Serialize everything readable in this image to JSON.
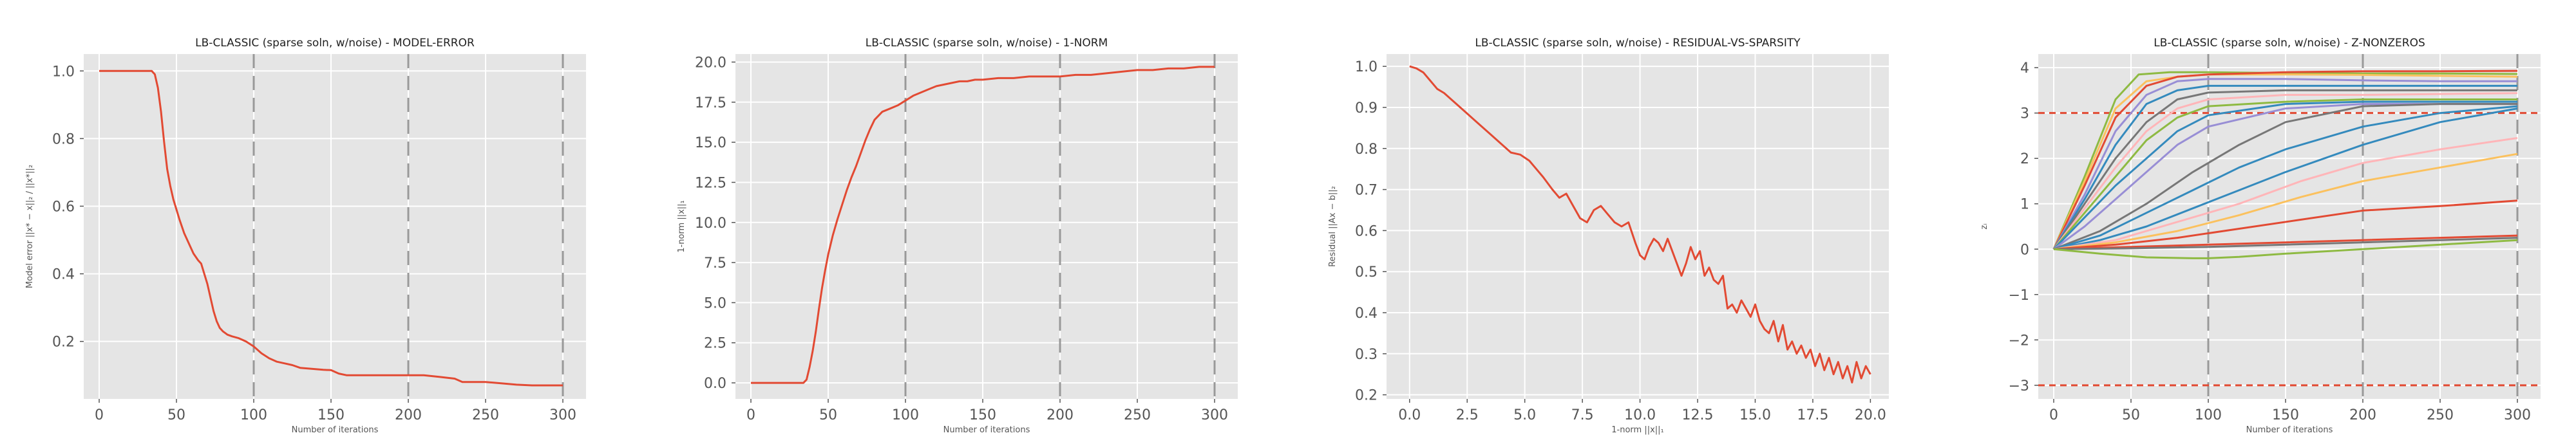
{
  "chart_data": [
    {
      "type": "line",
      "title": "LB-CLASSIC (sparse soln, w/noise) - MODEL-ERROR",
      "xlabel": "Number of iterations",
      "ylabel": "Model error ||x* − x||₂ / ||x*||₂",
      "xlim": [
        -10,
        315
      ],
      "ylim": [
        0.03,
        1.05
      ],
      "xticks": [
        0,
        50,
        100,
        150,
        200,
        250,
        300
      ],
      "yticks": [
        0.2,
        0.4,
        0.6,
        0.8,
        1.0
      ],
      "xtick_labels": [
        "0",
        "50",
        "100",
        "150",
        "200",
        "250",
        "300"
      ],
      "ytick_labels": [
        "0.2",
        "0.4",
        "0.6",
        "0.8",
        "1.0"
      ],
      "grid": true,
      "vlines": [
        100,
        200,
        300
      ],
      "series": [
        {
          "color": "#e24a33",
          "x": [
            0,
            34,
            36,
            38,
            40,
            42,
            44,
            46,
            48,
            50,
            52,
            55,
            58,
            61,
            64,
            66,
            68,
            70,
            72,
            74,
            76,
            78,
            80,
            83,
            86,
            90,
            95,
            100,
            105,
            110,
            115,
            120,
            125,
            130,
            135,
            140,
            145,
            150,
            155,
            160,
            170,
            180,
            190,
            200,
            210,
            220,
            230,
            235,
            240,
            250,
            260,
            270,
            280,
            290,
            300
          ],
          "y": [
            1.0,
            1.0,
            0.99,
            0.95,
            0.88,
            0.79,
            0.71,
            0.66,
            0.62,
            0.59,
            0.56,
            0.52,
            0.49,
            0.46,
            0.44,
            0.43,
            0.4,
            0.37,
            0.33,
            0.29,
            0.26,
            0.24,
            0.23,
            0.22,
            0.215,
            0.21,
            0.2,
            0.185,
            0.165,
            0.15,
            0.14,
            0.135,
            0.13,
            0.122,
            0.12,
            0.118,
            0.116,
            0.115,
            0.105,
            0.1,
            0.1,
            0.1,
            0.1,
            0.1,
            0.1,
            0.095,
            0.09,
            0.08,
            0.08,
            0.08,
            0.076,
            0.072,
            0.07,
            0.07,
            0.07
          ]
        }
      ]
    },
    {
      "type": "line",
      "title": "LB-CLASSIC (sparse soln, w/noise) - 1-NORM",
      "xlabel": "Number of iterations",
      "ylabel": "1-norm ||x||₁",
      "xlim": [
        -10,
        315
      ],
      "ylim": [
        -1,
        20.5
      ],
      "xticks": [
        0,
        50,
        100,
        150,
        200,
        250,
        300
      ],
      "yticks": [
        0.0,
        2.5,
        5.0,
        7.5,
        10.0,
        12.5,
        15.0,
        17.5,
        20.0
      ],
      "xtick_labels": [
        "0",
        "50",
        "100",
        "150",
        "200",
        "250",
        "300"
      ],
      "ytick_labels": [
        "0.0",
        "2.5",
        "5.0",
        "7.5",
        "10.0",
        "12.5",
        "15.0",
        "17.5",
        "20.0"
      ],
      "grid": true,
      "vlines": [
        100,
        200,
        300
      ],
      "series": [
        {
          "color": "#e24a33",
          "x": [
            0,
            34,
            36,
            38,
            40,
            42,
            44,
            46,
            48,
            50,
            53,
            56,
            59,
            62,
            65,
            68,
            71,
            74,
            77,
            80,
            85,
            90,
            95,
            100,
            105,
            110,
            115,
            120,
            125,
            130,
            135,
            140,
            145,
            150,
            160,
            170,
            180,
            190,
            200,
            210,
            220,
            230,
            240,
            250,
            260,
            270,
            280,
            290,
            300
          ],
          "y": [
            0.0,
            0.0,
            0.2,
            1.0,
            2.0,
            3.2,
            4.6,
            5.9,
            7.0,
            8.0,
            9.2,
            10.2,
            11.1,
            12.0,
            12.8,
            13.5,
            14.3,
            15.1,
            15.8,
            16.4,
            16.9,
            17.1,
            17.3,
            17.6,
            17.9,
            18.1,
            18.3,
            18.5,
            18.6,
            18.7,
            18.8,
            18.8,
            18.9,
            18.9,
            19.0,
            19.0,
            19.1,
            19.1,
            19.1,
            19.2,
            19.2,
            19.3,
            19.4,
            19.5,
            19.5,
            19.6,
            19.6,
            19.7,
            19.7
          ]
        }
      ]
    },
    {
      "type": "line",
      "title": "LB-CLASSIC (sparse soln, w/noise) - RESIDUAL-VS-SPARSITY",
      "xlabel": "1-norm ||x||₁",
      "ylabel": "Residual ||Ax − b||₂",
      "xlim": [
        -1,
        20.8
      ],
      "ylim": [
        0.19,
        1.03
      ],
      "xticks": [
        0.0,
        2.5,
        5.0,
        7.5,
        10.0,
        12.5,
        15.0,
        17.5,
        20.0
      ],
      "yticks": [
        0.2,
        0.3,
        0.4,
        0.5,
        0.6,
        0.7,
        0.8,
        0.9,
        1.0
      ],
      "xtick_labels": [
        "0.0",
        "2.5",
        "5.0",
        "7.5",
        "10.0",
        "12.5",
        "15.0",
        "17.5",
        "20.0"
      ],
      "ytick_labels": [
        "0.2",
        "0.3",
        "0.4",
        "0.5",
        "0.6",
        "0.7",
        "0.8",
        "0.9",
        "1.0"
      ],
      "grid": true,
      "vlines": [],
      "series": [
        {
          "color": "#e24a33",
          "x": [
            0.0,
            0.3,
            0.6,
            0.9,
            1.2,
            1.5,
            1.8,
            2.1,
            2.5,
            3.0,
            3.5,
            4.0,
            4.4,
            4.8,
            5.2,
            5.5,
            5.8,
            6.2,
            6.5,
            6.8,
            7.1,
            7.4,
            7.7,
            8.0,
            8.3,
            8.6,
            8.9,
            9.2,
            9.5,
            9.8,
            10.0,
            10.2,
            10.4,
            10.6,
            10.8,
            11.0,
            11.2,
            11.4,
            11.6,
            11.8,
            12.0,
            12.2,
            12.4,
            12.6,
            12.8,
            13.0,
            13.2,
            13.4,
            13.6,
            13.8,
            14.0,
            14.2,
            14.4,
            14.6,
            14.8,
            15.0,
            15.2,
            15.4,
            15.6,
            15.8,
            16.0,
            16.2,
            16.4,
            16.6,
            16.8,
            17.0,
            17.2,
            17.4,
            17.6,
            17.8,
            18.0,
            18.2,
            18.4,
            18.6,
            18.8,
            19.0,
            19.2,
            19.4,
            19.6,
            19.8,
            20.0
          ],
          "y": [
            1.0,
            0.995,
            0.985,
            0.965,
            0.945,
            0.935,
            0.92,
            0.905,
            0.885,
            0.86,
            0.835,
            0.81,
            0.79,
            0.785,
            0.77,
            0.75,
            0.73,
            0.7,
            0.68,
            0.69,
            0.66,
            0.63,
            0.62,
            0.65,
            0.66,
            0.64,
            0.62,
            0.61,
            0.62,
            0.57,
            0.54,
            0.53,
            0.56,
            0.58,
            0.57,
            0.55,
            0.58,
            0.55,
            0.52,
            0.49,
            0.52,
            0.56,
            0.53,
            0.55,
            0.49,
            0.51,
            0.48,
            0.47,
            0.49,
            0.41,
            0.42,
            0.4,
            0.43,
            0.41,
            0.39,
            0.42,
            0.38,
            0.36,
            0.35,
            0.38,
            0.33,
            0.37,
            0.31,
            0.33,
            0.3,
            0.32,
            0.29,
            0.31,
            0.27,
            0.3,
            0.26,
            0.29,
            0.25,
            0.28,
            0.24,
            0.27,
            0.23,
            0.28,
            0.24,
            0.27,
            0.25
          ]
        }
      ]
    },
    {
      "type": "line",
      "title": "LB-CLASSIC (sparse soln, w/noise) - Z-NONZEROS",
      "xlabel": "Number of iterations",
      "ylabel": "zᵢ",
      "xlim": [
        -10,
        315
      ],
      "ylim": [
        -3.3,
        4.3
      ],
      "xticks": [
        0,
        50,
        100,
        150,
        200,
        250,
        300
      ],
      "yticks": [
        -3,
        -2,
        -1,
        0,
        1,
        2,
        3,
        4
      ],
      "xtick_labels": [
        "0",
        "50",
        "100",
        "150",
        "200",
        "250",
        "300"
      ],
      "ytick_labels": [
        "−3",
        "−2",
        "−1",
        "0",
        "1",
        "2",
        "3",
        "4"
      ],
      "grid": true,
      "vlines": [
        100,
        200,
        300
      ],
      "hlines": [
        3,
        -3
      ],
      "series": [
        {
          "color": "#8eba42",
          "x": [
            0,
            20,
            40,
            55,
            75,
            100,
            150,
            200,
            250,
            300
          ],
          "y": [
            0,
            1.6,
            3.3,
            3.85,
            3.9,
            3.9,
            3.88,
            3.87,
            3.87,
            3.86
          ]
        },
        {
          "color": "#fbc15e",
          "x": [
            0,
            20,
            40,
            60,
            80,
            100,
            150,
            200,
            250,
            300
          ],
          "y": [
            0,
            1.5,
            3.1,
            3.7,
            3.8,
            3.85,
            3.85,
            3.84,
            3.82,
            3.8
          ]
        },
        {
          "color": "#e24a33",
          "x": [
            0,
            20,
            40,
            60,
            80,
            100,
            150,
            200,
            250,
            300
          ],
          "y": [
            0,
            1.4,
            2.9,
            3.6,
            3.8,
            3.85,
            3.9,
            3.92,
            3.92,
            3.93
          ]
        },
        {
          "color": "#988ed5",
          "x": [
            0,
            20,
            40,
            60,
            80,
            100,
            150,
            200,
            250,
            300
          ],
          "y": [
            0,
            1.2,
            2.6,
            3.4,
            3.7,
            3.75,
            3.75,
            3.72,
            3.7,
            3.7
          ]
        },
        {
          "color": "#348abd",
          "x": [
            0,
            20,
            40,
            60,
            80,
            100,
            150,
            200,
            250,
            300
          ],
          "y": [
            0,
            1.1,
            2.3,
            3.2,
            3.5,
            3.6,
            3.6,
            3.6,
            3.6,
            3.6
          ]
        },
        {
          "color": "#777777",
          "x": [
            0,
            20,
            40,
            60,
            80,
            100,
            150,
            200,
            250,
            300
          ],
          "y": [
            0,
            1.0,
            2.0,
            2.8,
            3.3,
            3.45,
            3.5,
            3.5,
            3.5,
            3.5
          ]
        },
        {
          "color": "#ffb5b8",
          "x": [
            0,
            20,
            40,
            60,
            80,
            100,
            150,
            200,
            250,
            300
          ],
          "y": [
            0,
            0.9,
            1.8,
            2.6,
            3.1,
            3.3,
            3.4,
            3.4,
            3.42,
            3.44
          ]
        },
        {
          "color": "#8eba42",
          "x": [
            0,
            20,
            40,
            60,
            80,
            100,
            150,
            200,
            250,
            300
          ],
          "y": [
            0,
            0.8,
            1.6,
            2.4,
            2.9,
            3.15,
            3.25,
            3.3,
            3.3,
            3.3
          ]
        },
        {
          "color": "#348abd",
          "x": [
            0,
            20,
            40,
            60,
            80,
            100,
            150,
            200,
            250,
            300
          ],
          "y": [
            0,
            0.7,
            1.4,
            2.0,
            2.6,
            2.95,
            3.2,
            3.25,
            3.25,
            3.25
          ]
        },
        {
          "color": "#988ed5",
          "x": [
            0,
            20,
            40,
            60,
            80,
            100,
            150,
            200,
            250,
            300
          ],
          "y": [
            0,
            0.5,
            1.1,
            1.7,
            2.3,
            2.7,
            3.1,
            3.2,
            3.2,
            3.2
          ]
        },
        {
          "color": "#777777",
          "x": [
            0,
            30,
            60,
            90,
            120,
            150,
            200,
            250,
            300
          ],
          "y": [
            0,
            0.4,
            1.0,
            1.7,
            2.3,
            2.8,
            3.15,
            3.2,
            3.2
          ]
        },
        {
          "color": "#348abd",
          "x": [
            0,
            30,
            60,
            90,
            120,
            150,
            200,
            250,
            300
          ],
          "y": [
            0,
            0.3,
            0.8,
            1.3,
            1.8,
            2.2,
            2.7,
            3.0,
            3.15
          ]
        },
        {
          "color": "#348abd",
          "x": [
            0,
            30,
            60,
            90,
            120,
            150,
            200,
            250,
            300
          ],
          "y": [
            0,
            0.2,
            0.5,
            0.9,
            1.3,
            1.7,
            2.3,
            2.8,
            3.1
          ]
        },
        {
          "color": "#ffb5b8",
          "x": [
            0,
            40,
            80,
            120,
            160,
            200,
            250,
            300
          ],
          "y": [
            0,
            0.2,
            0.6,
            1.0,
            1.5,
            1.9,
            2.2,
            2.45
          ]
        },
        {
          "color": "#fbc15e",
          "x": [
            0,
            40,
            80,
            120,
            160,
            200,
            250,
            300
          ],
          "y": [
            0,
            0.15,
            0.4,
            0.75,
            1.15,
            1.5,
            1.8,
            2.1
          ]
        },
        {
          "color": "#e24a33",
          "x": [
            0,
            40,
            80,
            120,
            160,
            200,
            250,
            300
          ],
          "y": [
            0,
            0.1,
            0.25,
            0.45,
            0.65,
            0.85,
            0.95,
            1.07
          ]
        },
        {
          "color": "#e24a33",
          "x": [
            0,
            50,
            100,
            150,
            200,
            250,
            300
          ],
          "y": [
            0,
            0.05,
            0.1,
            0.15,
            0.2,
            0.25,
            0.3
          ]
        },
        {
          "color": "#777777",
          "x": [
            0,
            50,
            100,
            150,
            200,
            250,
            300
          ],
          "y": [
            0,
            0.02,
            0.05,
            0.1,
            0.15,
            0.2,
            0.25
          ]
        },
        {
          "color": "#8eba42",
          "x": [
            0,
            30,
            60,
            90,
            100,
            120,
            150,
            200,
            250,
            300
          ],
          "y": [
            0,
            -0.1,
            -0.18,
            -0.2,
            -0.2,
            -0.17,
            -0.1,
            0.0,
            0.1,
            0.2
          ]
        }
      ]
    }
  ]
}
